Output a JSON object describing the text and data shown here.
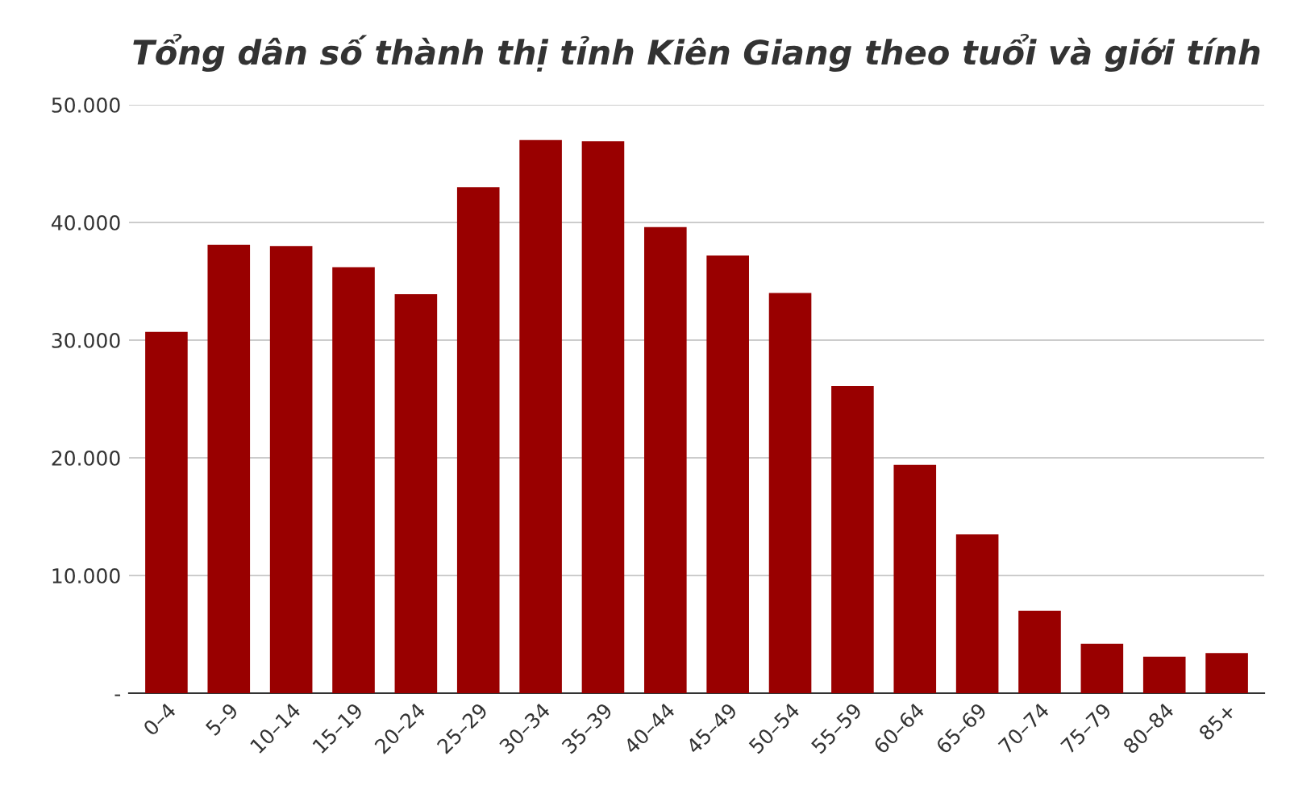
{
  "chart_data": {
    "type": "bar",
    "title": "Tổng dân số thành thị tỉnh Kiên Giang theo tuổi và giới tính",
    "categories": [
      "0–4",
      "5–9",
      "10–14",
      "15–19",
      "20–24",
      "25–29",
      "30–34",
      "35–39",
      "40–44",
      "45–49",
      "50–54",
      "55–59",
      "60–64",
      "65–69",
      "70–74",
      "75–79",
      "80–84",
      "85+"
    ],
    "values": [
      30700,
      38100,
      38000,
      36200,
      33900,
      43000,
      47000,
      46900,
      39600,
      37200,
      34000,
      26100,
      19400,
      13500,
      7000,
      4200,
      3100,
      3400
    ],
    "color": "#990000",
    "ylim": [
      0,
      50000
    ],
    "yticks": [
      {
        "value": 0,
        "label": "-"
      },
      {
        "value": 10000,
        "label": "10.000"
      },
      {
        "value": 20000,
        "label": "20.000"
      },
      {
        "value": 30000,
        "label": "30.000"
      },
      {
        "value": 40000,
        "label": "40.000"
      },
      {
        "value": 50000,
        "label": "50.000"
      }
    ],
    "grid": "y",
    "legend": false
  }
}
